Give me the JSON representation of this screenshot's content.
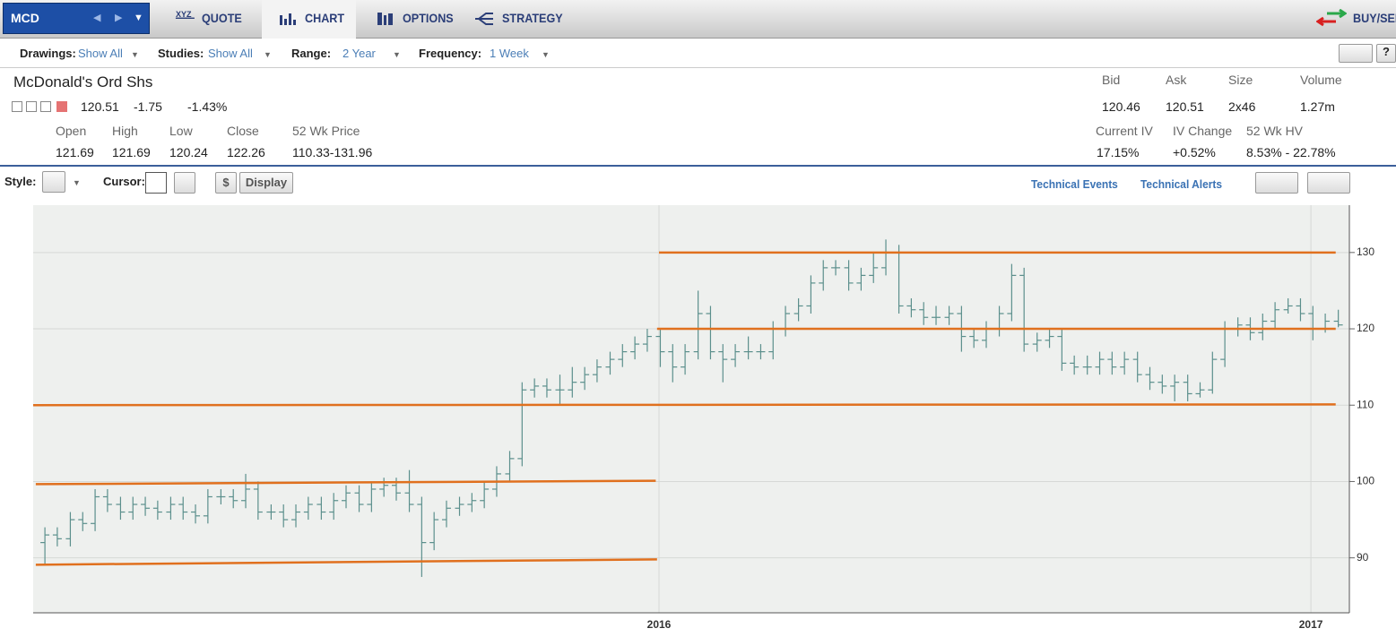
{
  "header": {
    "symbol": "MCD",
    "tabs": [
      "QUOTE",
      "CHART",
      "OPTIONS",
      "STRATEGY"
    ],
    "action": "BUY/SELL"
  },
  "toolbar": [
    {
      "label": "Drawings:",
      "value": "Show All"
    },
    {
      "label": "Studies:",
      "value": "Show All"
    },
    {
      "label": "Range:",
      "value": "2 Year"
    },
    {
      "label": "Frequency:",
      "value": "1 Week"
    }
  ],
  "quote": {
    "name": "McDonald's Ord Shs",
    "last": "120.51",
    "change": "-1.75",
    "change_pct": "-1.43%",
    "fields": [
      {
        "label": "Open",
        "value": "121.69"
      },
      {
        "label": "High",
        "value": "121.69"
      },
      {
        "label": "Low",
        "value": "120.24"
      },
      {
        "label": "Close",
        "value": "122.26"
      },
      {
        "label": "52 Wk Price",
        "value": "110.33-131.96"
      }
    ],
    "market": [
      {
        "label": "Bid",
        "value": "120.46"
      },
      {
        "label": "Ask",
        "value": "120.51"
      },
      {
        "label": "Size",
        "value": "2x46"
      },
      {
        "label": "Volume",
        "value": "1.27m"
      }
    ],
    "volatility": [
      {
        "label": "Current IV",
        "value": "17.15%"
      },
      {
        "label": "IV Change",
        "value": "+0.52%"
      },
      {
        "label": "52 Wk HV",
        "value": "8.53% - 22.78%"
      }
    ]
  },
  "chart_toolbar": {
    "style": "Style:",
    "cursor": "Cursor:",
    "dollar": "$",
    "display": "Display",
    "links": [
      "Technical Events",
      "Technical Alerts"
    ]
  },
  "chart_data": {
    "type": "ohlc",
    "color": "#5b8f8c",
    "drawing_color": "#e0701e",
    "grid": true,
    "xlim": [
      2015.04,
      2017.059
    ],
    "xticks": [
      2016,
      2017
    ],
    "ylim": [
      82.8,
      136.2
    ],
    "yticks": [
      90,
      100,
      110,
      120,
      130
    ],
    "x": [
      2015.058,
      2015.077,
      2015.097,
      2015.116,
      2015.135,
      2015.154,
      2015.174,
      2015.193,
      2015.212,
      2015.231,
      2015.251,
      2015.27,
      2015.289,
      2015.308,
      2015.328,
      2015.347,
      2015.366,
      2015.385,
      2015.405,
      2015.424,
      2015.443,
      2015.462,
      2015.482,
      2015.501,
      2015.52,
      2015.54,
      2015.559,
      2015.578,
      2015.597,
      2015.617,
      2015.636,
      2015.655,
      2015.674,
      2015.694,
      2015.713,
      2015.732,
      2015.751,
      2015.771,
      2015.79,
      2015.809,
      2015.828,
      2015.848,
      2015.867,
      2015.886,
      2015.905,
      2015.925,
      2015.944,
      2015.963,
      2015.982,
      2016.002,
      2016.021,
      2016.04,
      2016.06,
      2016.079,
      2016.098,
      2016.117,
      2016.137,
      2016.156,
      2016.175,
      2016.194,
      2016.214,
      2016.233,
      2016.252,
      2016.271,
      2016.291,
      2016.31,
      2016.329,
      2016.348,
      2016.368,
      2016.387,
      2016.406,
      2016.425,
      2016.445,
      2016.464,
      2016.483,
      2016.502,
      2016.522,
      2016.541,
      2016.56,
      2016.58,
      2016.599,
      2016.618,
      2016.637,
      2016.657,
      2016.676,
      2016.695,
      2016.714,
      2016.734,
      2016.753,
      2016.772,
      2016.791,
      2016.811,
      2016.83,
      2016.849,
      2016.868,
      2016.888,
      2016.907,
      2016.926,
      2016.945,
      2016.965,
      2016.984,
      2017.003,
      2017.022,
      2017.042
    ],
    "open": [
      92,
      93,
      92.5,
      95,
      94.5,
      98,
      97,
      96,
      97,
      96.5,
      96,
      97,
      96,
      95.5,
      98,
      98,
      97.5,
      99,
      96,
      96,
      95,
      96,
      97,
      96,
      97.5,
      98.5,
      97,
      99,
      99.5,
      98.5,
      97,
      92,
      95,
      96.5,
      97,
      97.5,
      99,
      101,
      103,
      112,
      112.5,
      112,
      112,
      113,
      114,
      115,
      116,
      117,
      118,
      119,
      117,
      115,
      117,
      122,
      117,
      116,
      117,
      117,
      117,
      120,
      122,
      123,
      126,
      128,
      128,
      126,
      127,
      128,
      130,
      123,
      122.5,
      121.5,
      121.5,
      122,
      119,
      118.5,
      120,
      122,
      127,
      118,
      118.5,
      119,
      115.5,
      115,
      115,
      116,
      115,
      116,
      114,
      113,
      112.5,
      113,
      111.5,
      112,
      116,
      120,
      120.5,
      119.5,
      121,
      122.5,
      123,
      122,
      120,
      121
    ],
    "high": [
      94,
      94,
      96,
      96,
      99,
      99,
      98,
      98,
      98,
      97.5,
      98,
      98,
      97,
      99,
      99,
      99,
      101,
      100,
      97,
      97,
      97,
      98,
      98,
      98.5,
      99.5,
      99.5,
      100,
      100.5,
      100.5,
      101.5,
      98,
      96,
      97.5,
      98,
      98.5,
      100,
      102,
      104,
      113,
      113.5,
      113.5,
      114,
      115,
      115,
      116,
      117,
      118,
      119,
      120,
      120,
      118,
      118,
      125,
      123,
      118,
      118,
      119,
      118,
      121,
      123,
      124,
      127,
      129,
      129,
      129,
      128,
      130,
      131.7,
      131,
      124,
      123.5,
      123,
      123,
      123,
      120,
      121,
      123,
      128.5,
      128,
      119.5,
      120,
      120,
      116.5,
      116.5,
      117,
      117,
      117,
      117,
      115,
      114,
      114,
      114,
      113,
      117,
      121,
      121.5,
      121.5,
      122,
      123.5,
      124,
      124,
      123,
      122,
      122.5
    ],
    "low": [
      89,
      91.5,
      91.5,
      93.5,
      93.5,
      96,
      95,
      95,
      95.5,
      95,
      95,
      95,
      94.5,
      94.5,
      97,
      96.5,
      96.5,
      95,
      95,
      94,
      94,
      95,
      95,
      95,
      96.5,
      96,
      96,
      98,
      97.5,
      96,
      87.5,
      91,
      94,
      95.5,
      96,
      96.5,
      98,
      100,
      102,
      111,
      111,
      110,
      111,
      112,
      113,
      114,
      115,
      116,
      117,
      115,
      113,
      114,
      116,
      116,
      113,
      115,
      116,
      116,
      116,
      119,
      121,
      122,
      125,
      127,
      125,
      125,
      126,
      127,
      122,
      121.5,
      120.5,
      120.5,
      120.5,
      117,
      117.5,
      117.5,
      119,
      121,
      117,
      117,
      117.5,
      114.5,
      114,
      114,
      114,
      114,
      114,
      113,
      112,
      111.5,
      110.5,
      110.5,
      111,
      111.5,
      115,
      119,
      118.5,
      118.5,
      120,
      122,
      121,
      118.5,
      119.5,
      120.2
    ],
    "close": [
      93,
      92.5,
      95,
      94.5,
      98,
      97,
      96,
      97,
      96.5,
      96,
      97,
      96,
      95.5,
      98,
      98,
      97.5,
      99,
      96,
      96,
      95,
      96,
      97,
      96,
      97.5,
      98.5,
      97,
      99,
      99.5,
      98.5,
      97,
      92,
      95,
      96.5,
      97,
      97.5,
      99,
      101,
      103,
      112,
      112.5,
      112,
      112,
      113,
      114,
      115,
      116,
      117,
      118,
      119,
      117,
      115,
      117,
      122,
      117,
      116,
      117,
      117,
      117,
      120,
      122,
      123,
      126,
      128,
      128,
      126,
      127,
      128,
      130,
      123,
      122.5,
      121.5,
      121.5,
      122,
      119,
      118.5,
      120,
      122,
      127,
      118,
      118.5,
      119,
      115.5,
      115,
      115,
      116,
      115,
      116,
      114,
      113,
      112.5,
      113,
      111.5,
      112,
      116,
      120,
      120.5,
      119.5,
      121,
      122.5,
      123,
      122,
      120,
      121,
      120.51
    ],
    "drawings": [
      {
        "x": [
          2016.0,
          2017.038
        ],
        "y": [
          130,
          130
        ]
      },
      {
        "x": [
          2015.997,
          2017.038
        ],
        "y": [
          120,
          120
        ]
      },
      {
        "x": [
          2015.04,
          2017.038
        ],
        "y": [
          110,
          110.1
        ]
      },
      {
        "x": [
          2015.044,
          2015.995
        ],
        "y": [
          99.65,
          100.1
        ]
      },
      {
        "x": [
          2015.044,
          2015.997
        ],
        "y": [
          89.1,
          89.8
        ]
      }
    ]
  }
}
